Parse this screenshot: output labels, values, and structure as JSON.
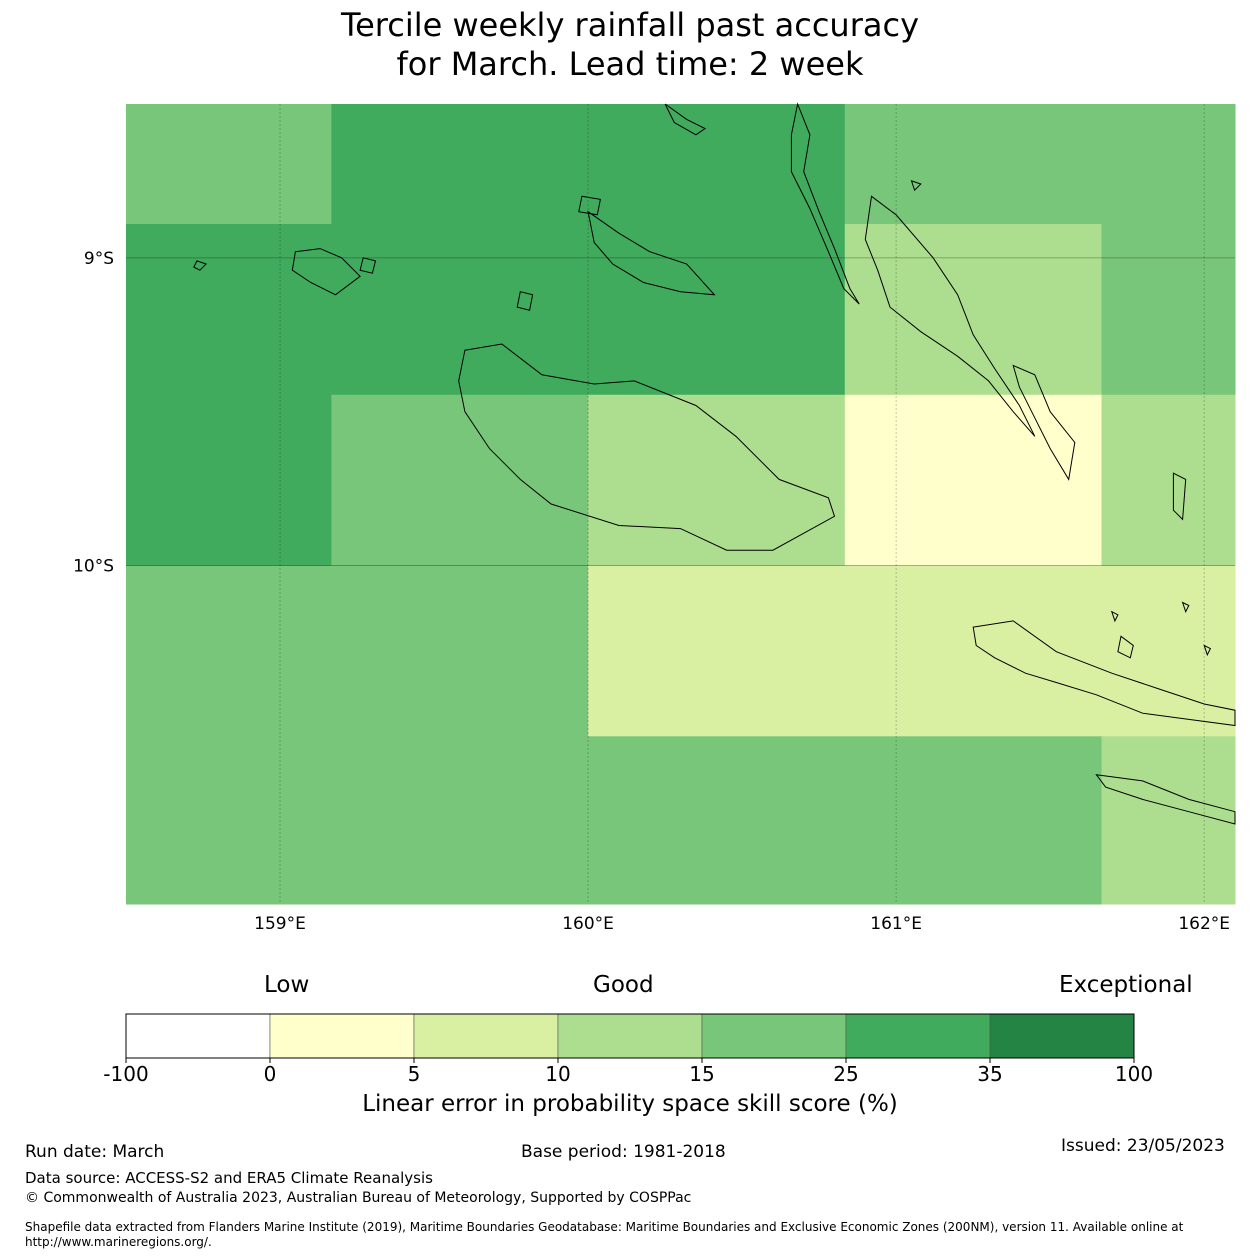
{
  "title": {
    "line1": "Tercile weekly rainfall past accuracy",
    "line2": "for March. Lead time: 2 week"
  },
  "map": {
    "lon_range": [
      158.5,
      162.1
    ],
    "lat_range": [
      -11.1,
      -8.5
    ],
    "lat_ticks": [
      {
        "value": -9,
        "label": "9°S"
      },
      {
        "value": -10,
        "label": "10°S"
      }
    ],
    "lon_ticks": [
      {
        "value": 159,
        "label": "159°E"
      },
      {
        "value": 160,
        "label": "160°E"
      },
      {
        "value": 161,
        "label": "161°E"
      },
      {
        "value": 162,
        "label": "162°E"
      }
    ],
    "cells": [
      {
        "lon": [
          158.5,
          159.1667
        ],
        "lat": [
          -8.89,
          -8.5
        ],
        "cat": 4
      },
      {
        "lon": [
          159.1667,
          160.8333
        ],
        "lat": [
          -8.89,
          -8.5
        ],
        "cat": 5
      },
      {
        "lon": [
          160.8333,
          162.1
        ],
        "lat": [
          -8.89,
          -8.5
        ],
        "cat": 4
      },
      {
        "lon": [
          158.5,
          159.1667
        ],
        "lat": [
          -9.445,
          -8.89
        ],
        "cat": 5
      },
      {
        "lon": [
          159.1667,
          160.8333
        ],
        "lat": [
          -9.445,
          -8.89
        ],
        "cat": 5
      },
      {
        "lon": [
          160.8333,
          161.6667
        ],
        "lat": [
          -9.445,
          -8.89
        ],
        "cat": 3
      },
      {
        "lon": [
          161.6667,
          162.1
        ],
        "lat": [
          -9.445,
          -8.89
        ],
        "cat": 4
      },
      {
        "lon": [
          158.5,
          159.1667
        ],
        "lat": [
          -10.0,
          -9.445
        ],
        "cat": 5
      },
      {
        "lon": [
          159.1667,
          160.0
        ],
        "lat": [
          -10.0,
          -9.445
        ],
        "cat": 4
      },
      {
        "lon": [
          160.0,
          160.8333
        ],
        "lat": [
          -10.0,
          -9.445
        ],
        "cat": 3
      },
      {
        "lon": [
          160.8333,
          161.6667
        ],
        "lat": [
          -10.0,
          -9.445
        ],
        "cat": 1
      },
      {
        "lon": [
          161.6667,
          162.1
        ],
        "lat": [
          -10.0,
          -9.445
        ],
        "cat": 3
      },
      {
        "lon": [
          158.5,
          160.0
        ],
        "lat": [
          -10.555,
          -10.0
        ],
        "cat": 4
      },
      {
        "lon": [
          160.0,
          162.1
        ],
        "lat": [
          -10.555,
          -10.0
        ],
        "cat": 2
      },
      {
        "lon": [
          158.5,
          161.6667
        ],
        "lat": [
          -11.1,
          -10.555
        ],
        "cat": 4
      },
      {
        "lon": [
          161.6667,
          162.1
        ],
        "lat": [
          -11.1,
          -10.555
        ],
        "cat": 3
      }
    ],
    "islands": [
      [
        [
          159.6,
          -9.3
        ],
        [
          159.72,
          -9.28
        ],
        [
          159.85,
          -9.38
        ],
        [
          160.02,
          -9.41
        ],
        [
          160.15,
          -9.4
        ],
        [
          160.35,
          -9.48
        ],
        [
          160.48,
          -9.58
        ],
        [
          160.62,
          -9.72
        ],
        [
          160.78,
          -9.78
        ],
        [
          160.8,
          -9.84
        ],
        [
          160.6,
          -9.95
        ],
        [
          160.45,
          -9.95
        ],
        [
          160.3,
          -9.88
        ],
        [
          160.1,
          -9.87
        ],
        [
          159.88,
          -9.8
        ],
        [
          159.78,
          -9.72
        ],
        [
          159.68,
          -9.62
        ],
        [
          159.6,
          -9.5
        ],
        [
          159.58,
          -9.4
        ]
      ],
      [
        [
          160.68,
          -8.5
        ],
        [
          160.72,
          -8.6
        ],
        [
          160.7,
          -8.72
        ],
        [
          160.75,
          -8.85
        ],
        [
          160.8,
          -8.97
        ],
        [
          160.85,
          -9.1
        ],
        [
          160.88,
          -9.15
        ],
        [
          160.83,
          -9.1
        ],
        [
          160.78,
          -8.98
        ],
        [
          160.72,
          -8.84
        ],
        [
          160.66,
          -8.72
        ],
        [
          160.66,
          -8.6
        ]
      ],
      [
        [
          160.92,
          -8.8
        ],
        [
          161.0,
          -8.86
        ],
        [
          161.12,
          -9.0
        ],
        [
          161.2,
          -9.12
        ],
        [
          161.25,
          -9.25
        ],
        [
          161.32,
          -9.36
        ],
        [
          161.4,
          -9.48
        ],
        [
          161.45,
          -9.58
        ],
        [
          161.38,
          -9.5
        ],
        [
          161.3,
          -9.4
        ],
        [
          161.2,
          -9.32
        ],
        [
          161.08,
          -9.24
        ],
        [
          160.98,
          -9.16
        ],
        [
          160.94,
          -9.04
        ],
        [
          160.9,
          -8.94
        ]
      ],
      [
        [
          161.38,
          -9.35
        ],
        [
          161.45,
          -9.38
        ],
        [
          161.5,
          -9.5
        ],
        [
          161.58,
          -9.6
        ],
        [
          161.56,
          -9.72
        ],
        [
          161.5,
          -9.62
        ],
        [
          161.44,
          -9.5
        ],
        [
          161.4,
          -9.42
        ]
      ],
      [
        [
          161.25,
          -10.2
        ],
        [
          161.38,
          -10.18
        ],
        [
          161.52,
          -10.28
        ],
        [
          161.7,
          -10.35
        ],
        [
          161.85,
          -10.4
        ],
        [
          162.0,
          -10.45
        ],
        [
          162.1,
          -10.47
        ],
        [
          162.1,
          -10.52
        ],
        [
          161.95,
          -10.5
        ],
        [
          161.8,
          -10.48
        ],
        [
          161.65,
          -10.42
        ],
        [
          161.52,
          -10.38
        ],
        [
          161.42,
          -10.35
        ],
        [
          161.32,
          -10.3
        ],
        [
          161.26,
          -10.26
        ]
      ],
      [
        [
          161.65,
          -10.68
        ],
        [
          161.8,
          -10.7
        ],
        [
          161.95,
          -10.76
        ],
        [
          162.1,
          -10.8
        ],
        [
          162.1,
          -10.84
        ],
        [
          161.95,
          -10.8
        ],
        [
          161.8,
          -10.76
        ],
        [
          161.68,
          -10.72
        ]
      ],
      [
        [
          160.0,
          -8.85
        ],
        [
          160.1,
          -8.92
        ],
        [
          160.2,
          -8.98
        ],
        [
          160.32,
          -9.02
        ],
        [
          160.41,
          -9.12
        ],
        [
          160.3,
          -9.11
        ],
        [
          160.18,
          -9.08
        ],
        [
          160.08,
          -9.02
        ],
        [
          160.02,
          -8.95
        ]
      ],
      [
        [
          159.98,
          -8.8
        ],
        [
          160.04,
          -8.81
        ],
        [
          160.03,
          -8.86
        ],
        [
          159.97,
          -8.85
        ]
      ],
      [
        [
          159.05,
          -8.98
        ],
        [
          159.13,
          -8.97
        ],
        [
          159.2,
          -9.0
        ],
        [
          159.26,
          -9.06
        ],
        [
          159.18,
          -9.12
        ],
        [
          159.1,
          -9.08
        ],
        [
          159.04,
          -9.04
        ]
      ],
      [
        [
          159.27,
          -9.0
        ],
        [
          159.31,
          -9.01
        ],
        [
          159.3,
          -9.05
        ],
        [
          159.26,
          -9.04
        ]
      ],
      [
        [
          158.73,
          -9.01
        ],
        [
          158.76,
          -9.02
        ],
        [
          158.74,
          -9.04
        ],
        [
          158.72,
          -9.03
        ]
      ],
      [
        [
          159.78,
          -9.11
        ],
        [
          159.82,
          -9.12
        ],
        [
          159.81,
          -9.17
        ],
        [
          159.77,
          -9.16
        ]
      ],
      [
        [
          161.9,
          -9.7
        ],
        [
          161.94,
          -9.72
        ],
        [
          161.93,
          -9.85
        ],
        [
          161.9,
          -9.82
        ]
      ],
      [
        [
          161.73,
          -10.23
        ],
        [
          161.77,
          -10.26
        ],
        [
          161.76,
          -10.3
        ],
        [
          161.72,
          -10.28
        ]
      ],
      [
        [
          161.7,
          -10.15
        ],
        [
          161.72,
          -10.16
        ],
        [
          161.71,
          -10.18
        ]
      ],
      [
        [
          161.93,
          -10.12
        ],
        [
          161.95,
          -10.13
        ],
        [
          161.94,
          -10.15
        ]
      ],
      [
        [
          162.0,
          -10.26
        ],
        [
          162.02,
          -10.27
        ],
        [
          162.01,
          -10.29
        ]
      ],
      [
        [
          160.25,
          -8.5
        ],
        [
          160.32,
          -8.55
        ],
        [
          160.38,
          -8.58
        ],
        [
          160.35,
          -8.6
        ],
        [
          160.28,
          -8.56
        ]
      ],
      [
        [
          161.05,
          -8.75
        ],
        [
          161.08,
          -8.76
        ],
        [
          161.06,
          -8.78
        ]
      ]
    ]
  },
  "colorbar": {
    "headings": {
      "low": "Low",
      "good": "Good",
      "exceptional": "Exceptional"
    },
    "colors": [
      "#ffffff",
      "#ffffcc",
      "#d9f0a3",
      "#addd8e",
      "#78c679",
      "#41ab5d",
      "#238443"
    ],
    "tick_labels": [
      "-100",
      "0",
      "5",
      "10",
      "15",
      "25",
      "35",
      "100"
    ],
    "label": "Linear error in probability space skill score (%)"
  },
  "footer": {
    "run_date": "Run date: March",
    "base_period": "Base period: 1981-2018",
    "issued": "Issued: 23/05/2023",
    "data_source": "Data source: ACCESS-S2 and ERA5 Climate Reanalysis",
    "copyright": "© Commonwealth of Australia 2023, Australian Bureau of Meteorology, Supported by COSPPac",
    "shapefile": "Shapefile data extracted from Flanders Marine Institute (2019), Maritime Boundaries Geodatabase: Maritime Boundaries and Exclusive Economic Zones (200NM), version 11. Available online at http://www.marineregions.org/."
  }
}
